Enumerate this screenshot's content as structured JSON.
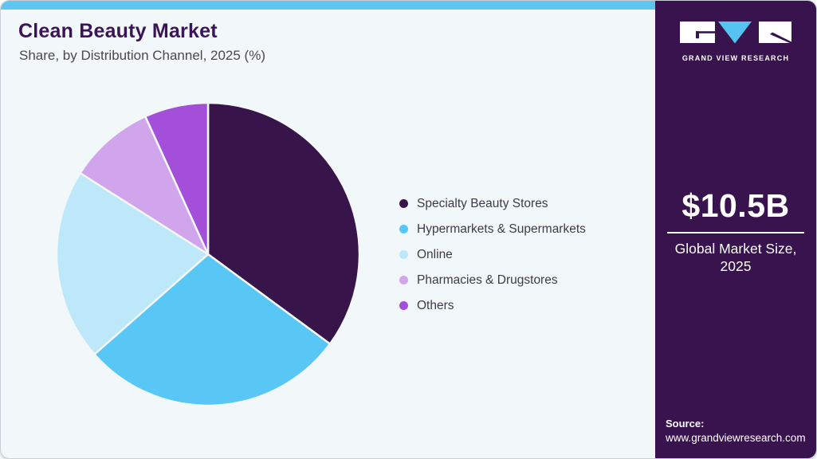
{
  "header": {
    "title": "Clean Beauty Market",
    "subtitle": "Share, by Distribution Channel, 2025  (%)"
  },
  "chart_data": {
    "type": "pie",
    "title": "Clean Beauty Market Share, by Distribution Channel, 2025 (%)",
    "unit": "%",
    "start_angle_deg": 0,
    "direction": "clockwise",
    "legend_position": "right",
    "labels": [
      "Specialty Beauty Stores",
      "Hypermarkets & Supermarkets",
      "Online",
      "Pharmacies & Drugstores",
      "Others"
    ],
    "values": [
      35.1,
      28.4,
      20.5,
      9.2,
      6.8
    ],
    "colors": [
      "#371449",
      "#58C7F5",
      "#BDE8FA",
      "#D0A5EC",
      "#A44FD9"
    ]
  },
  "sidebar": {
    "logo_text": "GRAND VIEW RESEARCH",
    "market_size_value": "$10.5B",
    "market_size_label_line1": "Global Market Size,",
    "market_size_label_line2": "2025",
    "source_label": "Source:",
    "source_url": "www.grandviewresearch.com"
  },
  "theme": {
    "top_bar_color": "#5EC6F2",
    "card_background": "#F2F7FA",
    "sidebar_background": "#38134E",
    "title_color": "#3A1457",
    "logo_triangle_color": "#56C4F0"
  }
}
